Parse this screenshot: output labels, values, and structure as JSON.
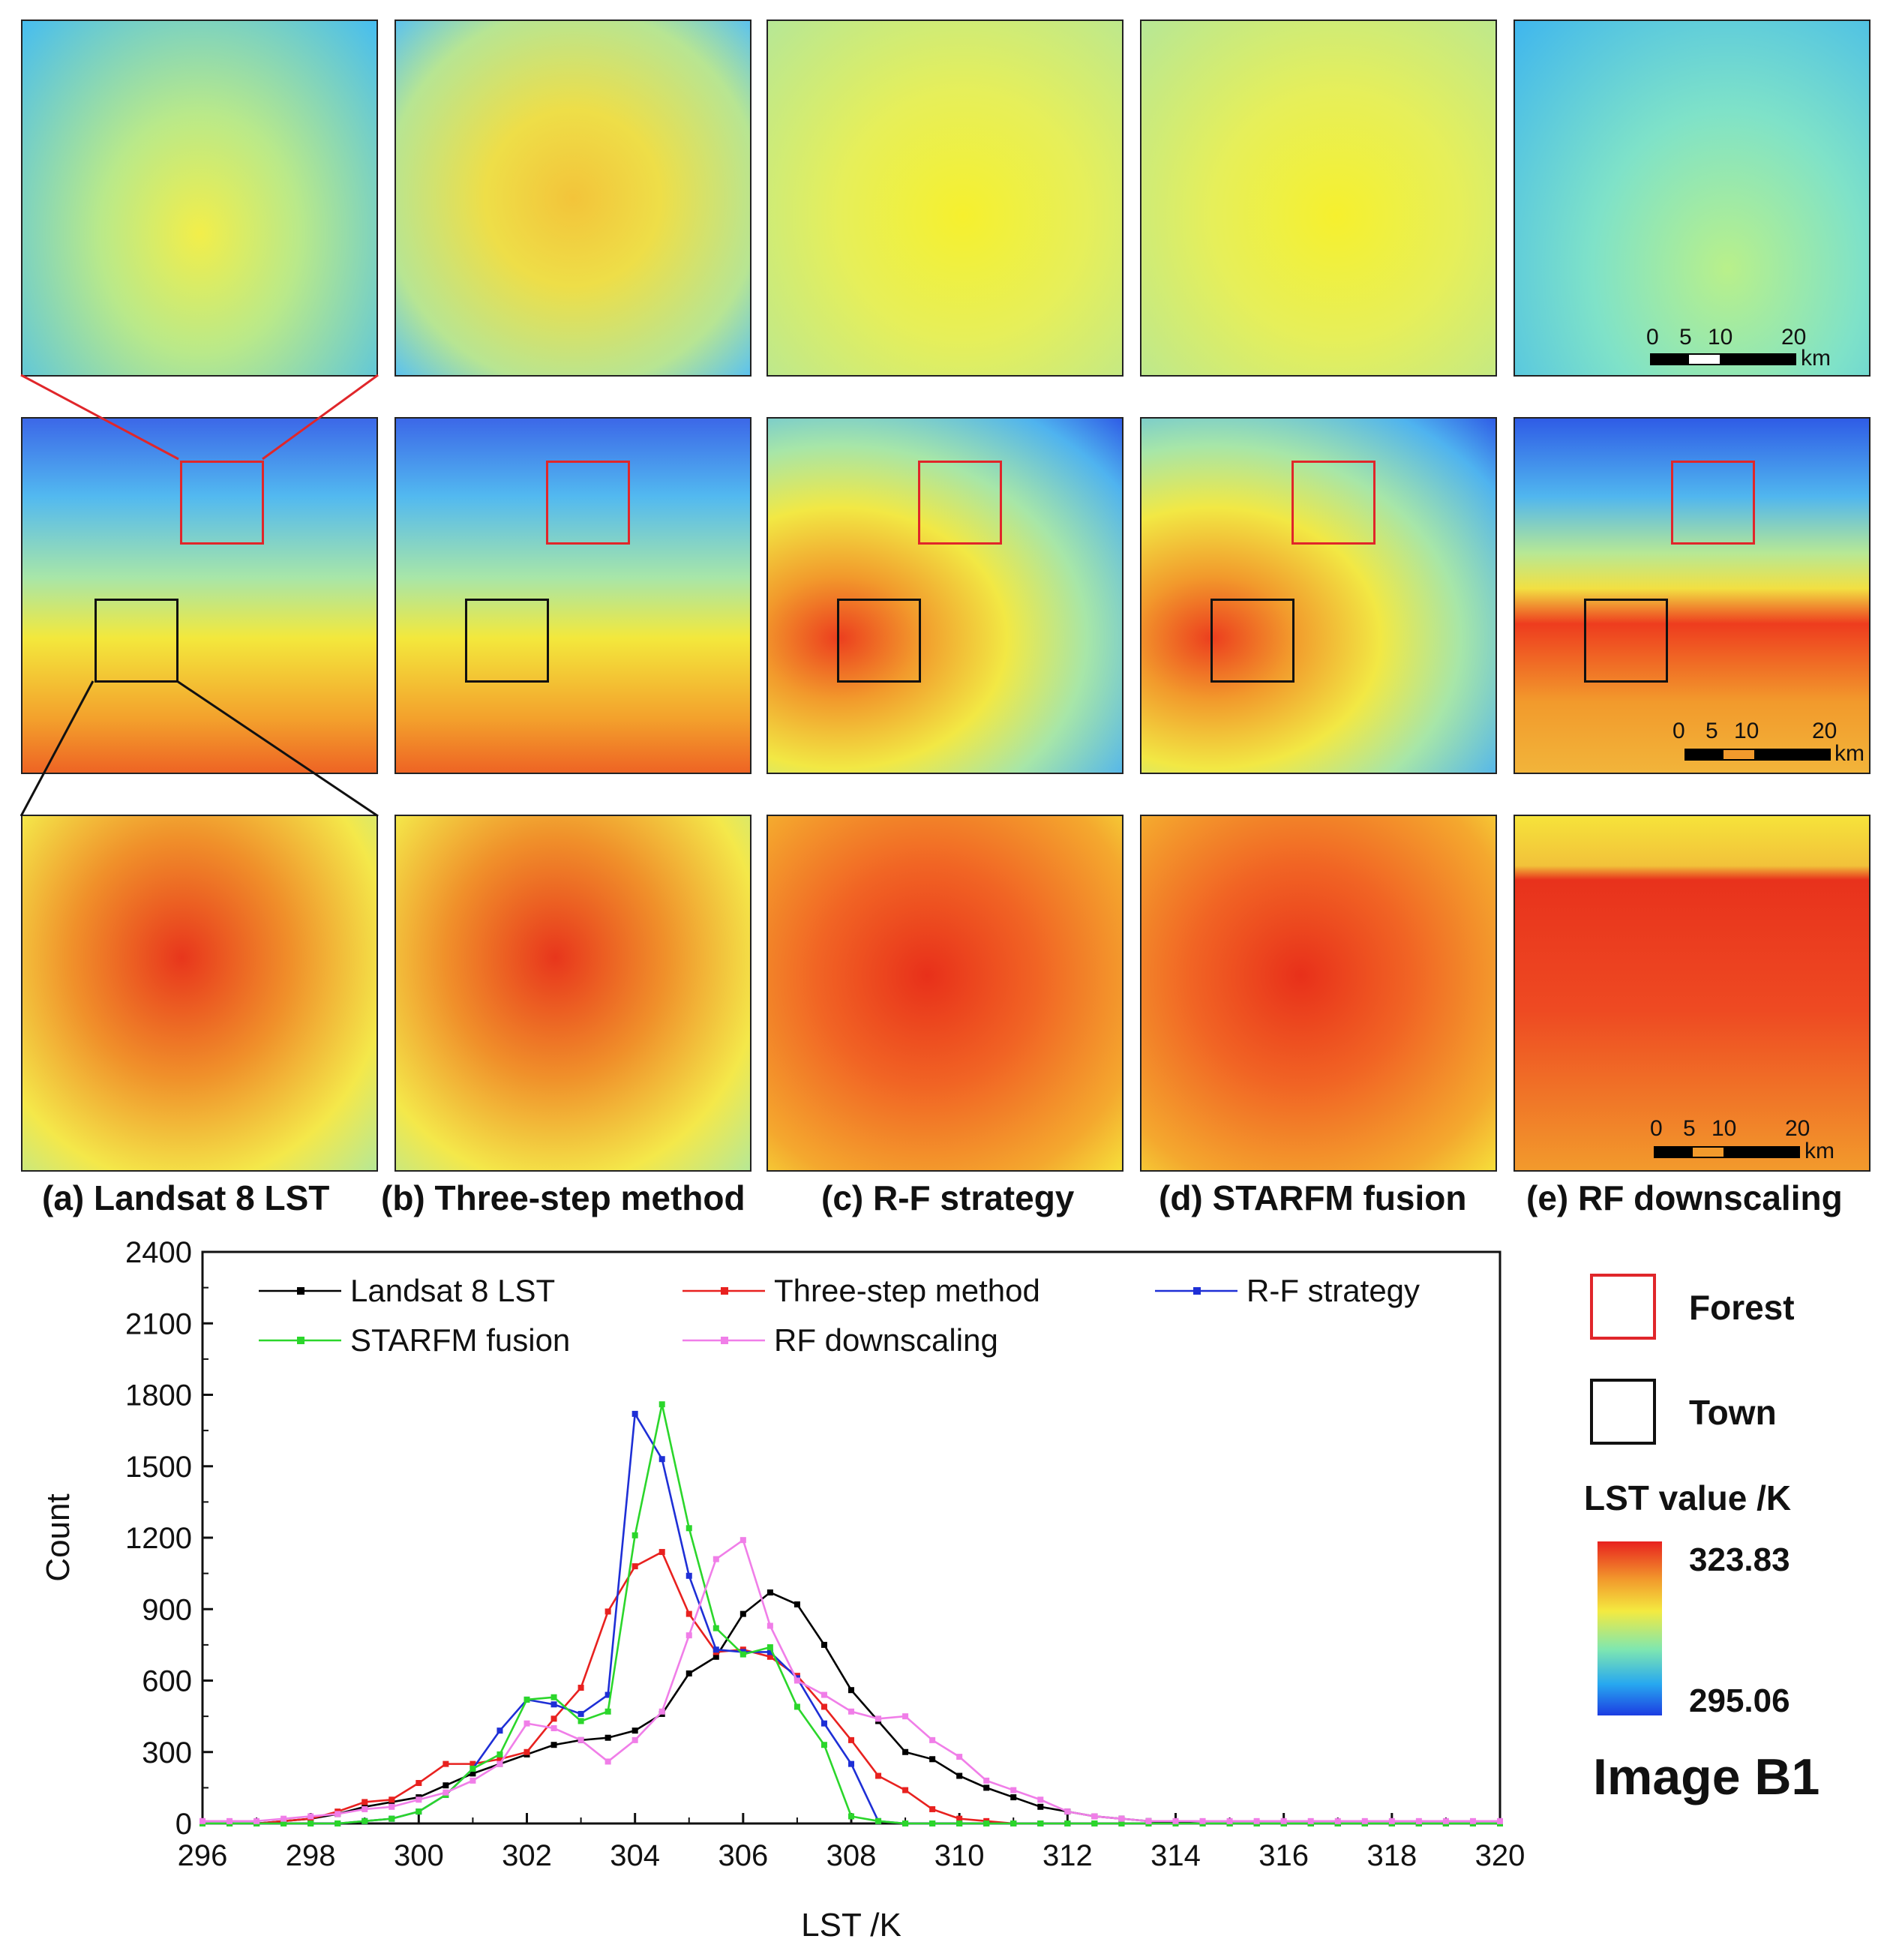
{
  "captions": {
    "a": "(a) Landsat 8 LST",
    "b": "(b) Three-step method",
    "c": "(c) R-F strategy",
    "d": "(d) STARFM fusion",
    "e": "(e) RF downscaling"
  },
  "scalebar": {
    "t0": "0",
    "t5": "5",
    "t10": "10",
    "t20": "20",
    "unit": "km"
  },
  "legend": {
    "forest": "Forest",
    "town": "Town",
    "lst_title": "LST value /K",
    "max": "323.83",
    "min": "295.06",
    "image_label": "Image B1",
    "forest_color": "#e0262a",
    "town_color": "#111111"
  },
  "chart_data": {
    "type": "line",
    "xlabel": "LST /K",
    "ylabel": "Count",
    "xlim": [
      296,
      320
    ],
    "ylim": [
      0,
      2400
    ],
    "xticks": [
      296,
      298,
      300,
      302,
      304,
      306,
      308,
      310,
      312,
      314,
      316,
      318,
      320
    ],
    "yticks": [
      0,
      300,
      600,
      900,
      1200,
      1500,
      1800,
      2100,
      2400
    ],
    "xtick_labels": [
      "296",
      "298",
      "300",
      "302",
      "304",
      "306",
      "308",
      "310",
      "312",
      "314",
      "316",
      "318",
      "320"
    ],
    "ytick_labels": [
      "0",
      "300",
      "600",
      "900",
      "1200",
      "1500",
      "1800",
      "2100",
      "2400"
    ],
    "x": [
      296.0,
      296.5,
      297.0,
      297.5,
      298.0,
      298.5,
      299.0,
      299.5,
      300.0,
      300.5,
      301.0,
      301.5,
      302.0,
      302.5,
      303.0,
      303.5,
      304.0,
      304.5,
      305.0,
      305.5,
      306.0,
      306.5,
      307.0,
      307.5,
      308.0,
      308.5,
      309.0,
      309.5,
      310.0,
      310.5,
      311.0,
      311.5,
      312.0,
      312.5,
      313.0,
      313.5,
      314.0,
      314.5,
      315.0,
      315.5,
      316.0,
      316.5,
      317.0,
      317.5,
      318.0,
      318.5,
      319.0,
      319.5,
      320.0
    ],
    "series": [
      {
        "name": "Landsat 8 LST",
        "color": "#000000",
        "values": [
          0,
          0,
          0,
          10,
          20,
          40,
          70,
          90,
          110,
          160,
          210,
          250,
          290,
          330,
          350,
          360,
          390,
          460,
          630,
          700,
          880,
          970,
          920,
          750,
          560,
          430,
          300,
          270,
          200,
          150,
          110,
          70,
          50,
          30,
          20,
          10,
          5,
          0,
          0,
          0,
          0,
          0,
          0,
          0,
          0,
          0,
          0,
          0,
          0
        ]
      },
      {
        "name": "Three-step method",
        "color": "#e8211f",
        "values": [
          0,
          0,
          0,
          10,
          20,
          50,
          90,
          100,
          170,
          250,
          250,
          270,
          300,
          440,
          570,
          890,
          1080,
          1140,
          880,
          720,
          730,
          700,
          620,
          490,
          350,
          200,
          140,
          60,
          20,
          10,
          0,
          0,
          0,
          0,
          0,
          0,
          0,
          0,
          0,
          0,
          0,
          0,
          0,
          0,
          0,
          0,
          0,
          0,
          0
        ]
      },
      {
        "name": "R-F strategy",
        "color": "#1e2fd6",
        "values": [
          0,
          0,
          0,
          0,
          0,
          0,
          10,
          20,
          50,
          120,
          230,
          390,
          520,
          500,
          460,
          540,
          1720,
          1530,
          1040,
          730,
          720,
          720,
          610,
          420,
          250,
          10,
          0,
          0,
          0,
          0,
          0,
          0,
          0,
          0,
          0,
          0,
          0,
          0,
          0,
          0,
          0,
          0,
          0,
          0,
          0,
          0,
          0,
          0,
          0
        ]
      },
      {
        "name": "STARFM fusion",
        "color": "#2bd62b",
        "values": [
          0,
          0,
          0,
          0,
          0,
          0,
          10,
          20,
          50,
          120,
          230,
          290,
          520,
          530,
          430,
          470,
          1210,
          1760,
          1240,
          820,
          710,
          740,
          490,
          330,
          30,
          10,
          0,
          0,
          0,
          0,
          0,
          0,
          0,
          0,
          0,
          0,
          0,
          0,
          0,
          0,
          0,
          0,
          0,
          0,
          0,
          0,
          0,
          0,
          0
        ]
      },
      {
        "name": "RF downscaling",
        "color": "#f07ee8",
        "values": [
          10,
          10,
          10,
          20,
          30,
          40,
          60,
          70,
          100,
          130,
          180,
          250,
          420,
          400,
          350,
          260,
          350,
          470,
          790,
          1110,
          1190,
          830,
          600,
          540,
          470,
          440,
          450,
          350,
          280,
          180,
          140,
          100,
          50,
          30,
          20,
          10,
          10,
          10,
          10,
          10,
          10,
          10,
          10,
          10,
          10,
          10,
          10,
          10,
          10
        ]
      }
    ]
  }
}
